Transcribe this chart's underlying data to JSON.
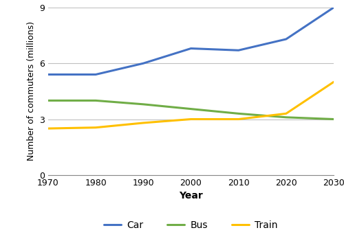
{
  "years": [
    1970,
    1980,
    1990,
    2000,
    2010,
    2020,
    2030
  ],
  "car": [
    5.4,
    5.4,
    6.0,
    6.8,
    6.7,
    7.3,
    9.0
  ],
  "bus": [
    4.0,
    4.0,
    3.8,
    3.55,
    3.3,
    3.1,
    3.0
  ],
  "train": [
    2.5,
    2.55,
    2.8,
    3.0,
    3.0,
    3.3,
    5.0
  ],
  "car_color": "#4472c4",
  "bus_color": "#70ad47",
  "train_color": "#ffc000",
  "xlabel": "Year",
  "ylabel": "Number of commuters (millions)",
  "xlim": [
    1970,
    2030
  ],
  "ylim": [
    0,
    9
  ],
  "yticks": [
    0,
    3,
    6,
    9
  ],
  "xticks": [
    1970,
    1980,
    1990,
    2000,
    2010,
    2020,
    2030
  ],
  "legend_labels": [
    "Car",
    "Bus",
    "Train"
  ],
  "line_width": 2.2,
  "background_color": "#ffffff",
  "grid_color": "#c0c0c0"
}
